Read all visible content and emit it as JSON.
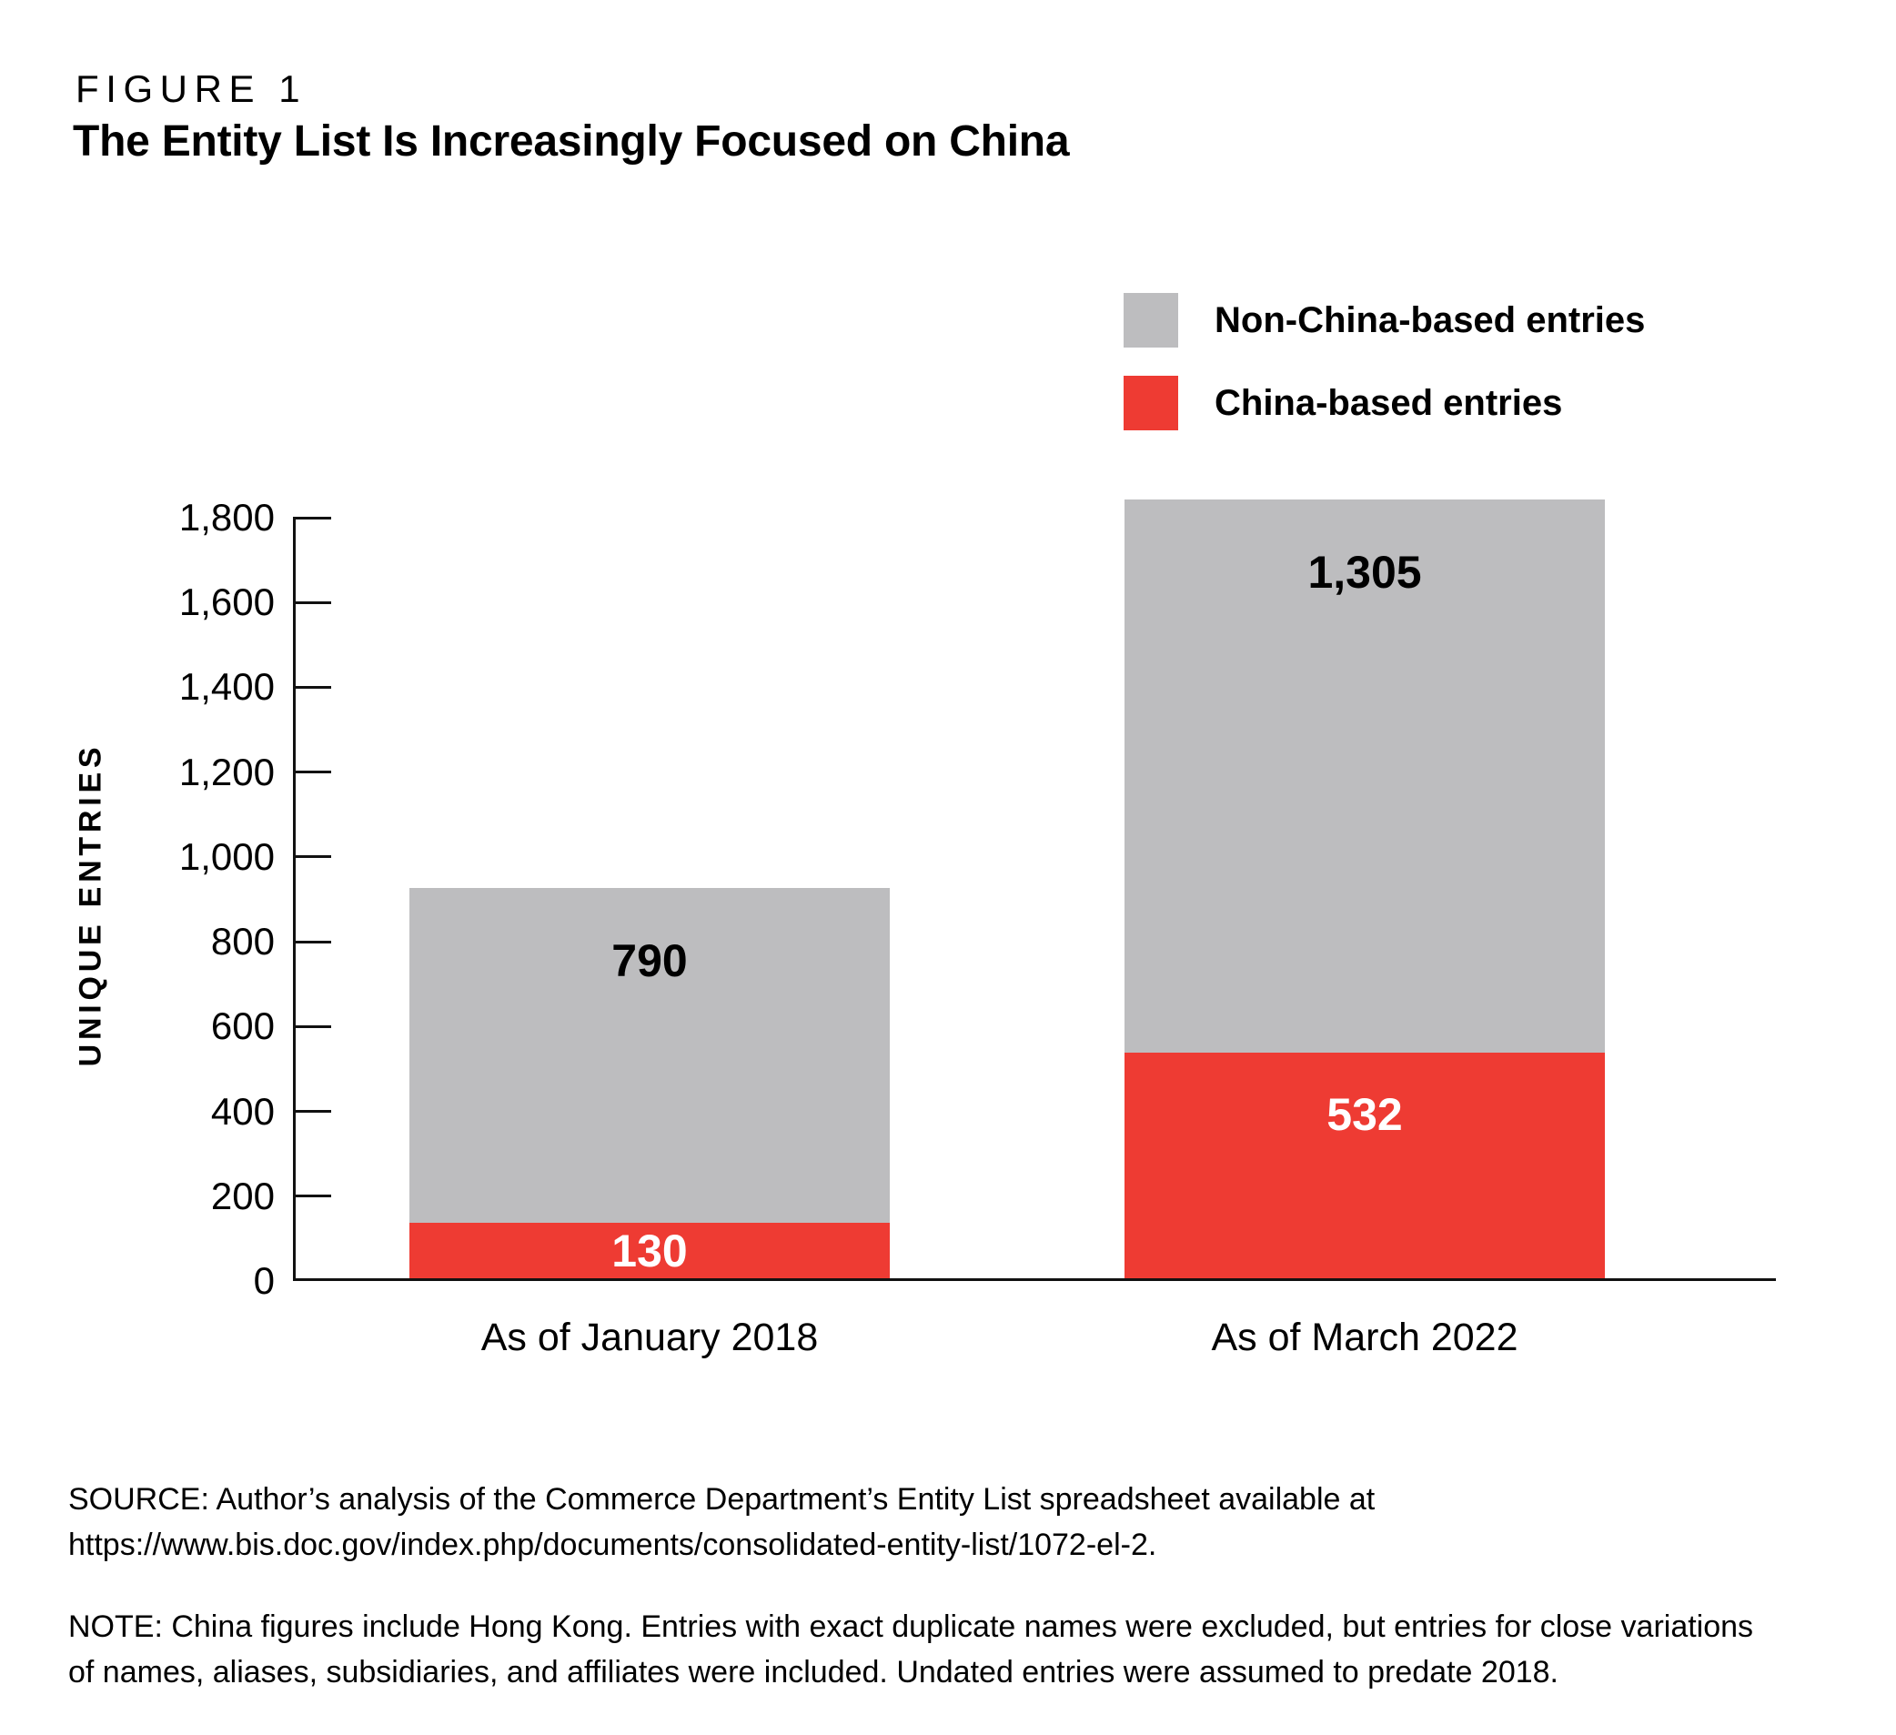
{
  "figure_label": "FIGURE 1",
  "title": "The Entity List Is Increasingly Focused on China",
  "legend": [
    {
      "label": "Non-China-based entries",
      "color": "#BDBDBF"
    },
    {
      "label": "China-based entries",
      "color": "#EE3B33"
    }
  ],
  "chart_data": {
    "type": "bar",
    "stacked": true,
    "categories": [
      "As of January 2018",
      "As of March 2022"
    ],
    "series": [
      {
        "name": "China-based entries",
        "color": "#EE3B33",
        "values": [
          130,
          532
        ],
        "labels": [
          "130",
          "532"
        ]
      },
      {
        "name": "Non-China-based entries",
        "color": "#BDBDBF",
        "values": [
          790,
          1305
        ],
        "labels": [
          "790",
          "1,305"
        ]
      }
    ],
    "totals": [
      920,
      1837
    ],
    "title": "The Entity List Is Increasingly Focused on China",
    "xlabel": "",
    "ylabel": "UNIQUE ENTRIES",
    "ylim": [
      0,
      1800
    ],
    "ytick_step": 200,
    "yticks": [
      "0",
      "200",
      "400",
      "600",
      "800",
      "1,000",
      "1,200",
      "1,400",
      "1,600",
      "1,800"
    ],
    "grid": false,
    "legend_position": "top-right"
  },
  "source": {
    "lines": [
      "SOURCE: Author’s analysis of the Commerce Department’s Entity List spreadsheet available at",
      "https://www.bis.doc.gov/index.php/documents/consolidated-entity-list/1072-el-2."
    ]
  },
  "note": {
    "lines": [
      "NOTE: China figures include Hong Kong. Entries with exact duplicate names were excluded, but entries for close variations",
      "of names, aliases, subsidiaries, and affiliates were included. Undated entries were assumed to predate 2018."
    ]
  }
}
